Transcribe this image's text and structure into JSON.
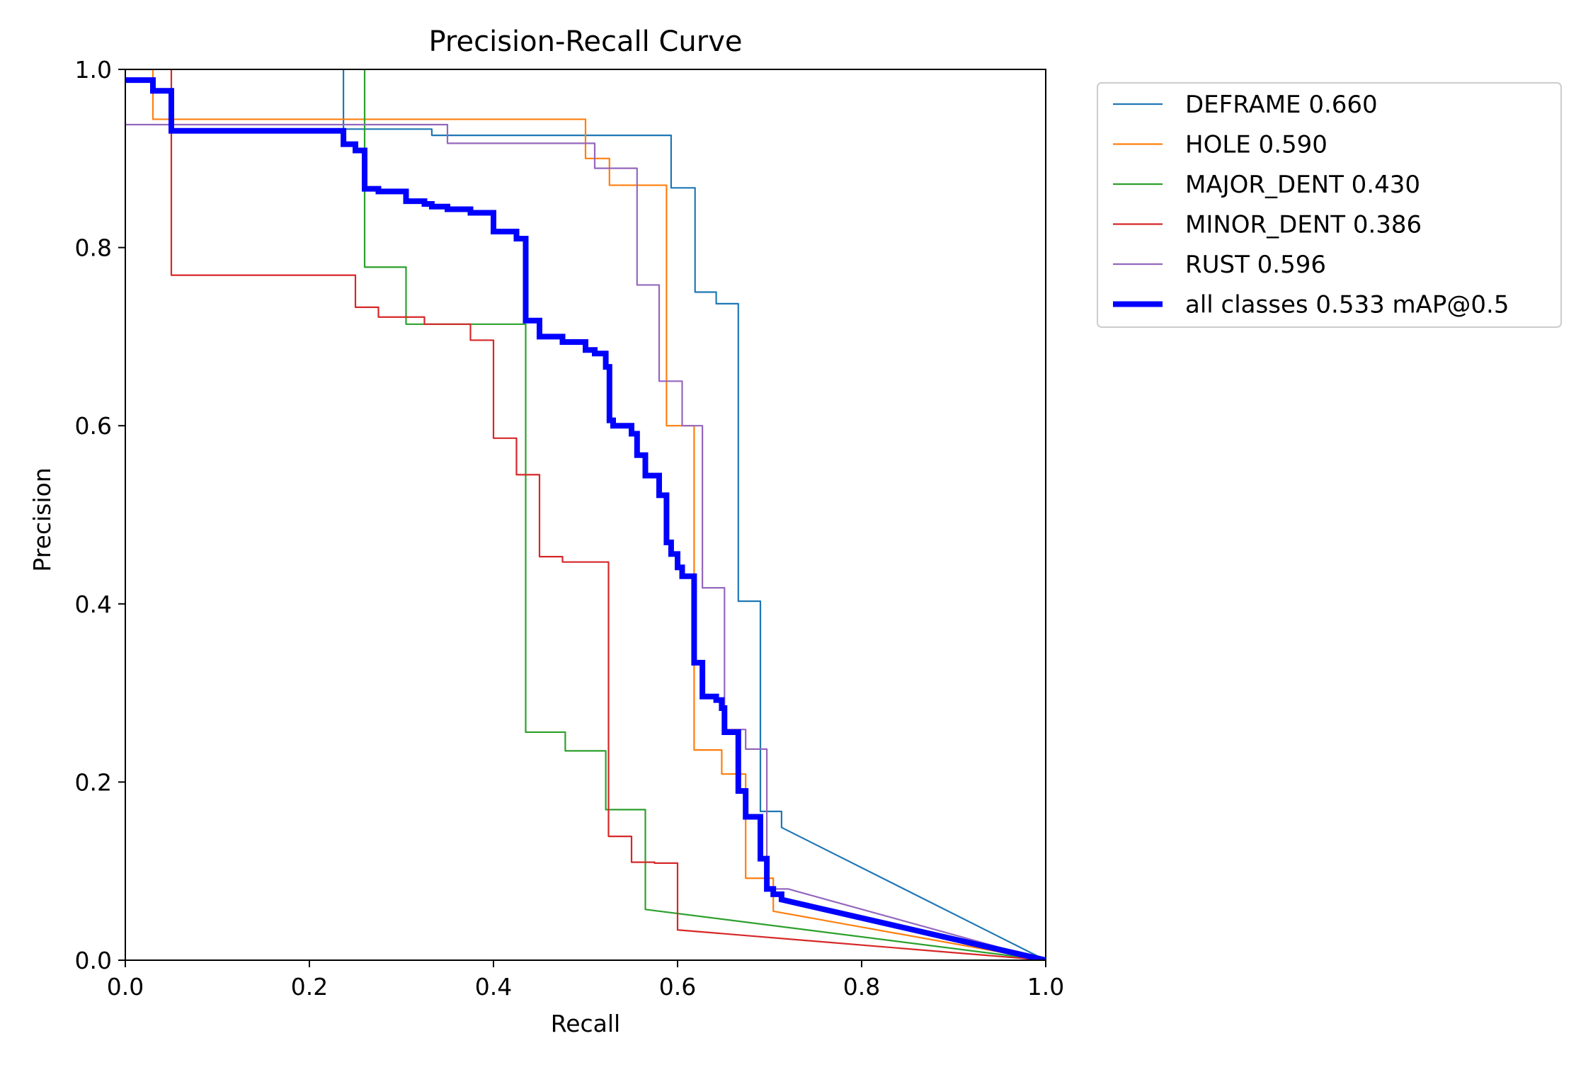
{
  "chart_data": {
    "type": "line",
    "title": "Precision-Recall Curve",
    "xlabel": "Recall",
    "ylabel": "Precision",
    "xlim": [
      0,
      1
    ],
    "ylim": [
      0,
      1
    ],
    "xticks": [
      0.0,
      0.2,
      0.4,
      0.6,
      0.8,
      1.0
    ],
    "yticks": [
      0.0,
      0.2,
      0.4,
      0.6,
      0.8,
      1.0
    ],
    "xtick_labels": [
      "0.0",
      "0.2",
      "0.4",
      "0.6",
      "0.8",
      "1.0"
    ],
    "ytick_labels": [
      "0.0",
      "0.2",
      "0.4",
      "0.6",
      "0.8",
      "1.0"
    ],
    "grid": false,
    "legend_position": "outside-top-right",
    "series": [
      {
        "name": "DEFRAME",
        "ap": "0.660",
        "legend_label": "DEFRAME 0.660",
        "color": "#1f77b4",
        "emphasis": false,
        "points": [
          [
            0.237,
            1.0
          ],
          [
            0.237,
            0.933
          ],
          [
            0.333,
            0.933
          ],
          [
            0.333,
            0.926
          ],
          [
            0.593,
            0.926
          ],
          [
            0.593,
            0.867
          ],
          [
            0.619,
            0.867
          ],
          [
            0.619,
            0.75
          ],
          [
            0.642,
            0.75
          ],
          [
            0.642,
            0.737
          ],
          [
            0.666,
            0.737
          ],
          [
            0.666,
            0.403
          ],
          [
            0.69,
            0.403
          ],
          [
            0.69,
            0.167
          ],
          [
            0.713,
            0.167
          ],
          [
            0.713,
            0.149
          ],
          [
            1.0,
            0.0
          ]
        ]
      },
      {
        "name": "HOLE",
        "ap": "0.590",
        "legend_label": "HOLE 0.590",
        "color": "#ff7f0e",
        "emphasis": false,
        "points": [
          [
            0.0,
            1.0
          ],
          [
            0.03,
            1.0
          ],
          [
            0.03,
            0.944
          ],
          [
            0.5,
            0.944
          ],
          [
            0.5,
            0.9
          ],
          [
            0.526,
            0.9
          ],
          [
            0.526,
            0.87
          ],
          [
            0.588,
            0.87
          ],
          [
            0.588,
            0.6
          ],
          [
            0.618,
            0.6
          ],
          [
            0.618,
            0.236
          ],
          [
            0.648,
            0.236
          ],
          [
            0.648,
            0.209
          ],
          [
            0.674,
            0.209
          ],
          [
            0.674,
            0.092
          ],
          [
            0.704,
            0.092
          ],
          [
            0.704,
            0.055
          ],
          [
            1.0,
            0.0
          ]
        ]
      },
      {
        "name": "MAJOR_DENT",
        "ap": "0.430",
        "legend_label": "MAJOR_DENT 0.430",
        "color": "#2ca02c",
        "emphasis": false,
        "points": [
          [
            0.26,
            1.0
          ],
          [
            0.26,
            0.778
          ],
          [
            0.305,
            0.778
          ],
          [
            0.305,
            0.714
          ],
          [
            0.435,
            0.714
          ],
          [
            0.435,
            0.256
          ],
          [
            0.478,
            0.256
          ],
          [
            0.478,
            0.235
          ],
          [
            0.522,
            0.235
          ],
          [
            0.522,
            0.169
          ],
          [
            0.565,
            0.169
          ],
          [
            0.565,
            0.057
          ],
          [
            1.0,
            0.0
          ]
        ]
      },
      {
        "name": "MINOR_DENT",
        "ap": "0.386",
        "legend_label": "MINOR_DENT 0.386",
        "color": "#d62728",
        "emphasis": false,
        "points": [
          [
            0.05,
            1.0
          ],
          [
            0.05,
            0.769
          ],
          [
            0.25,
            0.769
          ],
          [
            0.25,
            0.733
          ],
          [
            0.275,
            0.733
          ],
          [
            0.275,
            0.722
          ],
          [
            0.325,
            0.722
          ],
          [
            0.325,
            0.714
          ],
          [
            0.375,
            0.714
          ],
          [
            0.375,
            0.696
          ],
          [
            0.4,
            0.696
          ],
          [
            0.4,
            0.586
          ],
          [
            0.425,
            0.586
          ],
          [
            0.425,
            0.545
          ],
          [
            0.45,
            0.545
          ],
          [
            0.45,
            0.453
          ],
          [
            0.475,
            0.453
          ],
          [
            0.475,
            0.447
          ],
          [
            0.525,
            0.447
          ],
          [
            0.525,
            0.139
          ],
          [
            0.55,
            0.139
          ],
          [
            0.55,
            0.11
          ],
          [
            0.575,
            0.11
          ],
          [
            0.575,
            0.109
          ],
          [
            0.6,
            0.109
          ],
          [
            0.6,
            0.034
          ],
          [
            1.0,
            0.0
          ]
        ]
      },
      {
        "name": "RUST",
        "ap": "0.596",
        "legend_label": "RUST 0.596",
        "color": "#9467bd",
        "emphasis": false,
        "points": [
          [
            0.0,
            0.938
          ],
          [
            0.35,
            0.938
          ],
          [
            0.35,
            0.917
          ],
          [
            0.51,
            0.917
          ],
          [
            0.51,
            0.889
          ],
          [
            0.556,
            0.889
          ],
          [
            0.556,
            0.758
          ],
          [
            0.58,
            0.758
          ],
          [
            0.58,
            0.65
          ],
          [
            0.605,
            0.65
          ],
          [
            0.605,
            0.6
          ],
          [
            0.627,
            0.6
          ],
          [
            0.627,
            0.418
          ],
          [
            0.651,
            0.418
          ],
          [
            0.651,
            0.259
          ],
          [
            0.674,
            0.259
          ],
          [
            0.674,
            0.237
          ],
          [
            0.697,
            0.237
          ],
          [
            0.697,
            0.08
          ],
          [
            0.72,
            0.08
          ],
          [
            1.0,
            0.0
          ]
        ]
      },
      {
        "name": "all classes",
        "ap": "0.533",
        "legend_label": "all classes 0.533 mAP@0.5",
        "color": "#0000ff",
        "emphasis": true,
        "points": [
          [
            0.0,
            0.988
          ],
          [
            0.03,
            0.988
          ],
          [
            0.03,
            0.976
          ],
          [
            0.05,
            0.976
          ],
          [
            0.05,
            0.931
          ],
          [
            0.237,
            0.931
          ],
          [
            0.237,
            0.916
          ],
          [
            0.25,
            0.916
          ],
          [
            0.25,
            0.909
          ],
          [
            0.26,
            0.909
          ],
          [
            0.26,
            0.866
          ],
          [
            0.275,
            0.866
          ],
          [
            0.275,
            0.863
          ],
          [
            0.305,
            0.863
          ],
          [
            0.305,
            0.852
          ],
          [
            0.325,
            0.852
          ],
          [
            0.325,
            0.849
          ],
          [
            0.333,
            0.849
          ],
          [
            0.333,
            0.846
          ],
          [
            0.35,
            0.846
          ],
          [
            0.35,
            0.843
          ],
          [
            0.375,
            0.843
          ],
          [
            0.375,
            0.839
          ],
          [
            0.4,
            0.839
          ],
          [
            0.4,
            0.818
          ],
          [
            0.425,
            0.818
          ],
          [
            0.425,
            0.81
          ],
          [
            0.435,
            0.81
          ],
          [
            0.435,
            0.718
          ],
          [
            0.45,
            0.718
          ],
          [
            0.45,
            0.7
          ],
          [
            0.475,
            0.7
          ],
          [
            0.475,
            0.694
          ],
          [
            0.5,
            0.694
          ],
          [
            0.5,
            0.685
          ],
          [
            0.51,
            0.685
          ],
          [
            0.51,
            0.681
          ],
          [
            0.522,
            0.681
          ],
          [
            0.522,
            0.666
          ],
          [
            0.526,
            0.666
          ],
          [
            0.526,
            0.606
          ],
          [
            0.53,
            0.606
          ],
          [
            0.53,
            0.6
          ],
          [
            0.55,
            0.6
          ],
          [
            0.55,
            0.591
          ],
          [
            0.556,
            0.591
          ],
          [
            0.556,
            0.567
          ],
          [
            0.565,
            0.567
          ],
          [
            0.565,
            0.544
          ],
          [
            0.58,
            0.544
          ],
          [
            0.58,
            0.522
          ],
          [
            0.588,
            0.522
          ],
          [
            0.588,
            0.469
          ],
          [
            0.593,
            0.469
          ],
          [
            0.593,
            0.456
          ],
          [
            0.6,
            0.456
          ],
          [
            0.6,
            0.441
          ],
          [
            0.605,
            0.441
          ],
          [
            0.605,
            0.431
          ],
          [
            0.618,
            0.431
          ],
          [
            0.618,
            0.334
          ],
          [
            0.627,
            0.334
          ],
          [
            0.627,
            0.296
          ],
          [
            0.642,
            0.296
          ],
          [
            0.642,
            0.292
          ],
          [
            0.648,
            0.292
          ],
          [
            0.648,
            0.283
          ],
          [
            0.651,
            0.283
          ],
          [
            0.651,
            0.256
          ],
          [
            0.666,
            0.256
          ],
          [
            0.666,
            0.19
          ],
          [
            0.674,
            0.19
          ],
          [
            0.674,
            0.161
          ],
          [
            0.69,
            0.161
          ],
          [
            0.69,
            0.114
          ],
          [
            0.697,
            0.114
          ],
          [
            0.697,
            0.08
          ],
          [
            0.704,
            0.08
          ],
          [
            0.704,
            0.074
          ],
          [
            0.713,
            0.074
          ],
          [
            0.713,
            0.068
          ],
          [
            1.0,
            0.0
          ]
        ]
      }
    ]
  }
}
